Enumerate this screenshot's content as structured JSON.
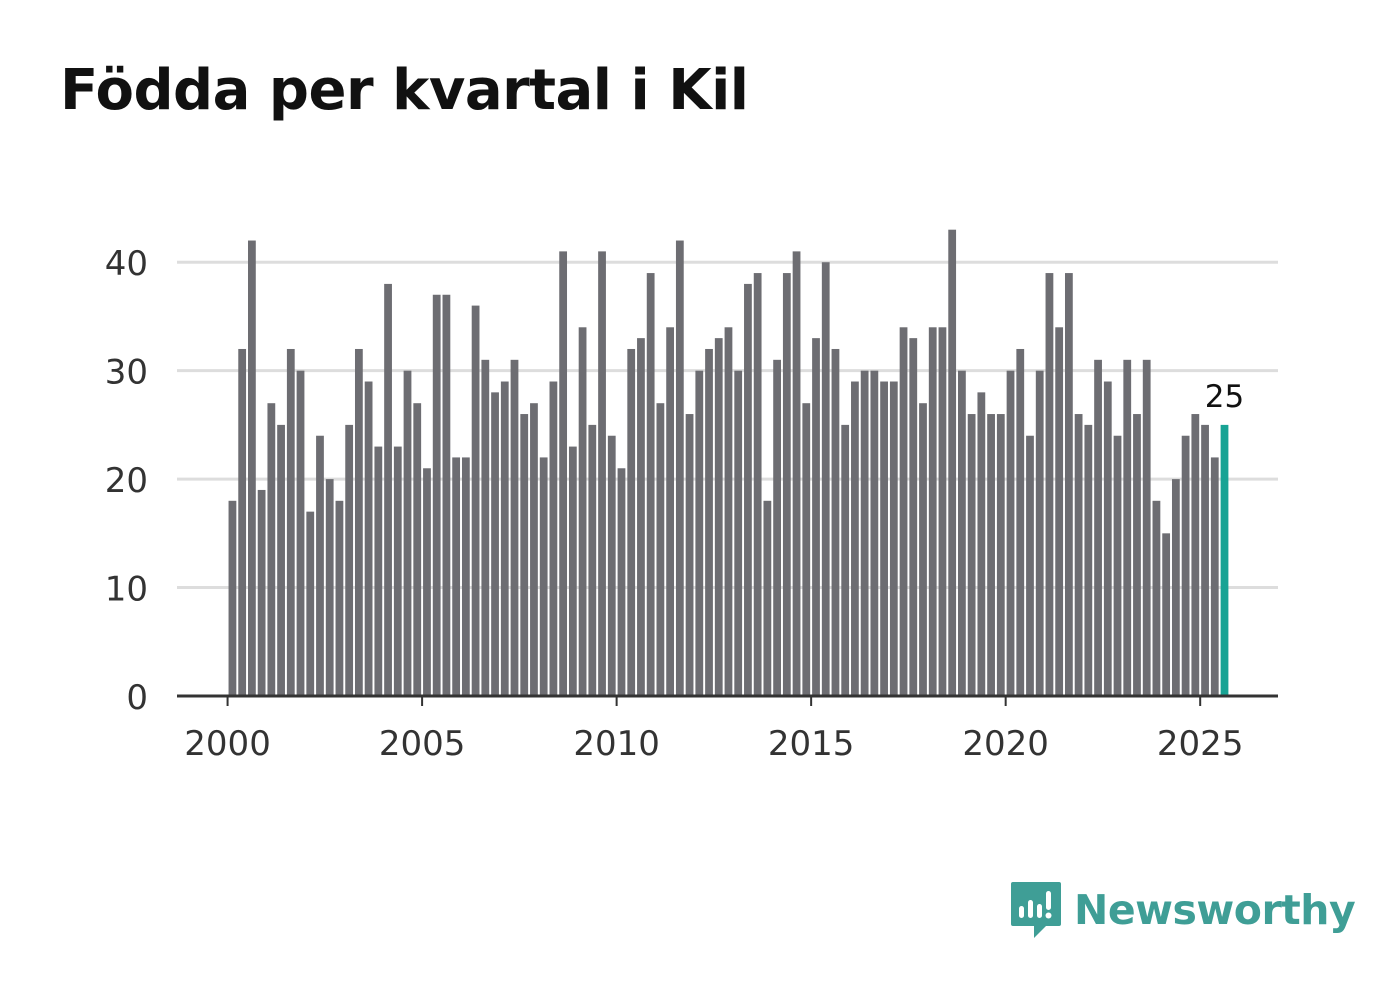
{
  "title": "Födda per kvartal i Kil",
  "brand": "Newsworthy",
  "colors": {
    "bar": "#6d6d72",
    "highlight": "#18a394",
    "grid": "#dddddd",
    "axis": "#333333",
    "brand": "#3f9e96"
  },
  "chart_data": {
    "type": "bar",
    "title": "Födda per kvartal i Kil",
    "xlabel": "",
    "ylabel": "",
    "ylim": [
      0,
      45
    ],
    "xlim": [
      1998.7,
      2027.0
    ],
    "yticks": [
      0,
      10,
      20,
      30,
      40
    ],
    "xticks": [
      2000,
      2005,
      2010,
      2015,
      2020,
      2025
    ],
    "start_year": 2000,
    "periods_per_year": 4,
    "values": [
      18,
      32,
      42,
      19,
      27,
      25,
      32,
      30,
      17,
      24,
      20,
      18,
      25,
      32,
      29,
      23,
      38,
      23,
      30,
      27,
      21,
      37,
      37,
      22,
      22,
      36,
      31,
      28,
      29,
      31,
      26,
      27,
      22,
      29,
      41,
      23,
      34,
      25,
      41,
      24,
      21,
      32,
      33,
      39,
      27,
      34,
      42,
      26,
      30,
      32,
      33,
      34,
      30,
      38,
      39,
      18,
      31,
      39,
      41,
      27,
      33,
      40,
      32,
      25,
      29,
      30,
      30,
      29,
      29,
      34,
      33,
      27,
      34,
      34,
      43,
      30,
      26,
      28,
      26,
      26,
      30,
      32,
      24,
      30,
      39,
      34,
      39,
      26,
      25,
      31,
      29,
      24,
      31,
      26,
      31,
      18,
      15,
      20,
      24,
      26,
      25,
      22,
      25
    ],
    "highlight_index": 102,
    "annotation": "25"
  }
}
